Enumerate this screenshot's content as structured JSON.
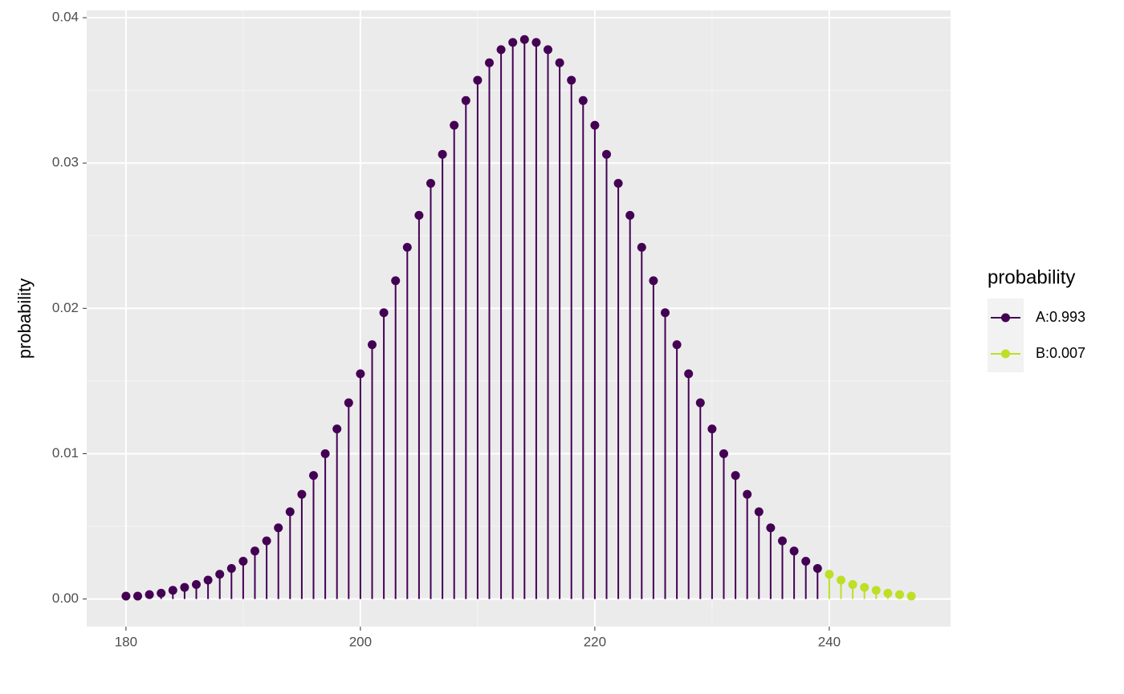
{
  "chart_data": {
    "type": "lollipop",
    "y_label": "probability",
    "legend_title": "probability",
    "xlim": [
      176.65,
      250.35
    ],
    "ylim": [
      -0.0019,
      0.0405
    ],
    "xticks": [
      180,
      200,
      220,
      240
    ],
    "yticks": [
      {
        "value": 0,
        "label": "0.00"
      },
      {
        "value": 0.01,
        "label": "0.01"
      },
      {
        "value": 0.02,
        "label": "0.02"
      },
      {
        "value": 0.03,
        "label": "0.03"
      },
      {
        "value": 0.04,
        "label": "0.04"
      }
    ],
    "grid": true,
    "series": [
      {
        "name": "A:0.993",
        "color": "#440154",
        "x": [
          180,
          181,
          182,
          183,
          184,
          185,
          186,
          187,
          188,
          189,
          190,
          191,
          192,
          193,
          194,
          195,
          196,
          197,
          198,
          199,
          200,
          201,
          202,
          203,
          204,
          205,
          206,
          207,
          208,
          209,
          210,
          211,
          212,
          213,
          214,
          215,
          216,
          217,
          218,
          219,
          220,
          221,
          222,
          223,
          224,
          225,
          226,
          227,
          228,
          229,
          230,
          231,
          232,
          233,
          234,
          235,
          236,
          237,
          238,
          239
        ],
        "values": [
          0.0002,
          0.0002,
          0.0003,
          0.0004,
          0.0006,
          0.0008,
          0.001,
          0.0013,
          0.0017,
          0.0021,
          0.0026,
          0.0033,
          0.004,
          0.0049,
          0.006,
          0.0072,
          0.0085,
          0.01,
          0.0117,
          0.0135,
          0.0155,
          0.0175,
          0.0197,
          0.0219,
          0.0242,
          0.0264,
          0.0286,
          0.0306,
          0.0326,
          0.0343,
          0.0357,
          0.0369,
          0.0378,
          0.0383,
          0.0385,
          0.0383,
          0.0378,
          0.0369,
          0.0357,
          0.0343,
          0.0326,
          0.0306,
          0.0286,
          0.0264,
          0.0242,
          0.0219,
          0.0197,
          0.0175,
          0.0155,
          0.0135,
          0.0117,
          0.01,
          0.0085,
          0.0072,
          0.006,
          0.0049,
          0.004,
          0.0033,
          0.0026,
          0.0021
        ]
      },
      {
        "name": "B:0.007",
        "color": "#bddf26",
        "x": [
          240,
          241,
          242,
          243,
          244,
          245,
          246,
          247
        ],
        "values": [
          0.0017,
          0.0013,
          0.001,
          0.0008,
          0.0006,
          0.0004,
          0.0003,
          0.0002
        ]
      }
    ]
  }
}
